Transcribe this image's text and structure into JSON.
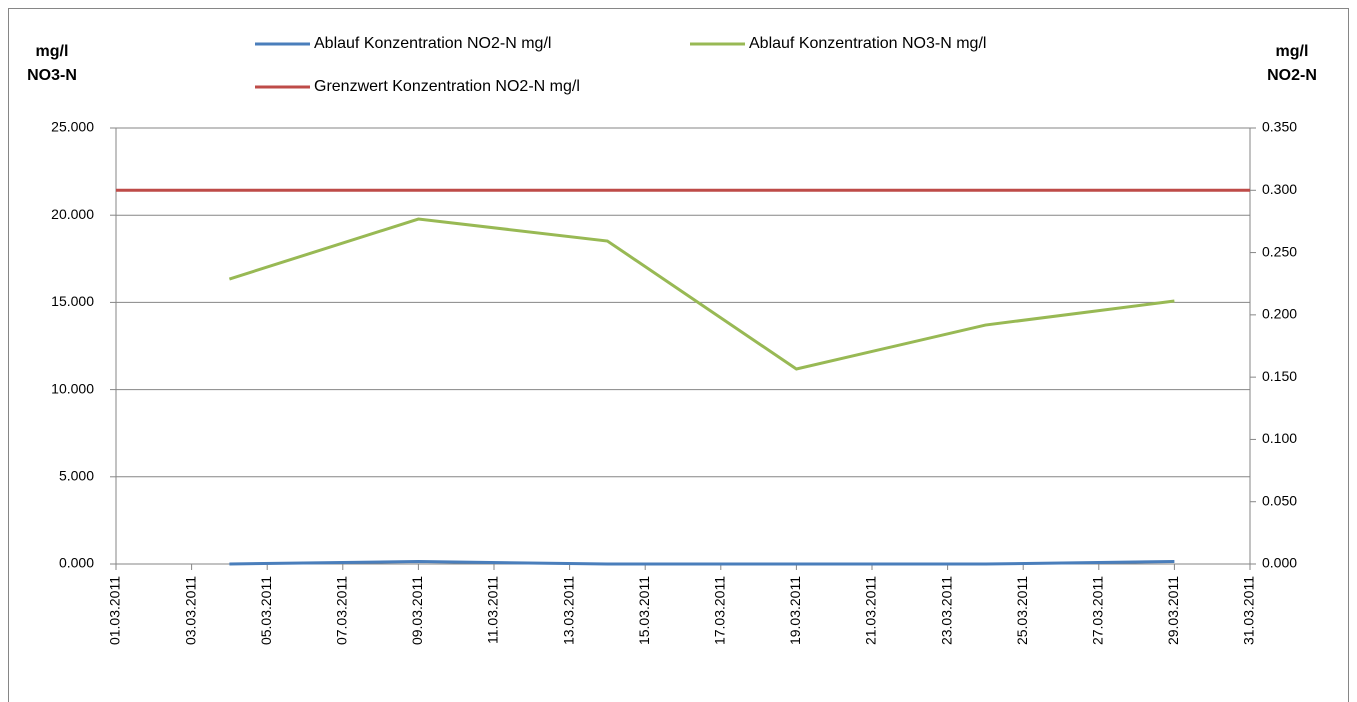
{
  "chart_data": {
    "type": "line",
    "ylabel": [
      "mg/l",
      "NO3-N"
    ],
    "y2label": [
      "mg/l",
      "NO2-N"
    ],
    "xlim": [
      "01.03.2011",
      "31.03.2011"
    ],
    "xticks": [
      "01.03.2011",
      "03.03.2011",
      "05.03.2011",
      "07.03.2011",
      "09.03.2011",
      "11.03.2011",
      "13.03.2011",
      "15.03.2011",
      "17.03.2011",
      "19.03.2011",
      "21.03.2011",
      "23.03.2011",
      "25.03.2011",
      "27.03.2011",
      "29.03.2011",
      "31.03.2011"
    ],
    "ylim": [
      0,
      25
    ],
    "yticks": [
      {
        "value": 0,
        "label": "0.000"
      },
      {
        "value": 5,
        "label": "5.000"
      },
      {
        "value": 10,
        "label": "10.000"
      },
      {
        "value": 15,
        "label": "15.000"
      },
      {
        "value": 20,
        "label": "20.000"
      },
      {
        "value": 25,
        "label": "25.000"
      }
    ],
    "y2lim": [
      0,
      0.35
    ],
    "y2ticks": [
      {
        "value": 0,
        "label": "0.000"
      },
      {
        "value": 0.05,
        "label": "0.050"
      },
      {
        "value": 0.1,
        "label": "0.100"
      },
      {
        "value": 0.15,
        "label": "0.150"
      },
      {
        "value": 0.2,
        "label": "0.200"
      },
      {
        "value": 0.25,
        "label": "0.250"
      },
      {
        "value": 0.3,
        "label": "0.300"
      },
      {
        "value": 0.35,
        "label": "0.350"
      }
    ],
    "grid": true,
    "legend": "top",
    "series": [
      {
        "name": "Ablauf Konzentration NO2-N mg/l",
        "color": "#4a7ebb",
        "axis": "y2",
        "x": [
          "04.03.2011",
          "09.03.2011",
          "14.03.2011",
          "19.03.2011",
          "24.03.2011",
          "29.03.2011"
        ],
        "values": [
          0.0,
          0.002,
          0.0,
          0.0,
          0.0,
          0.002
        ]
      },
      {
        "name": "Ablauf Konzentration NO3-N mg/l",
        "color": "#98b954",
        "axis": "y",
        "x": [
          "04.03.2011",
          "09.03.2011",
          "14.03.2011",
          "19.03.2011",
          "24.03.2011",
          "29.03.2011"
        ],
        "values": [
          16.34,
          19.78,
          18.52,
          11.18,
          13.7,
          15.08
        ]
      },
      {
        "name": "Grenzwert Konzentration NO2-N mg/l",
        "color": "#be4b48",
        "axis": "y2",
        "x": [
          "01.03.2011",
          "31.03.2011"
        ],
        "values": [
          0.3,
          0.3
        ]
      }
    ]
  }
}
